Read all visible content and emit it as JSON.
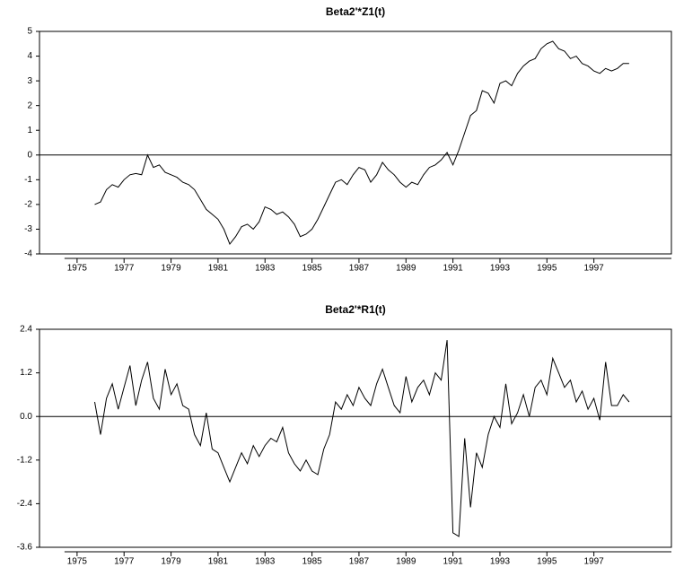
{
  "chart_data": [
    {
      "type": "line",
      "title": "Beta2'*Z1(t)",
      "color": "#000000",
      "x": [
        1975.75,
        1976,
        1976.25,
        1976.5,
        1976.75,
        1977,
        1977.25,
        1977.5,
        1977.75,
        1978,
        1978.25,
        1978.5,
        1978.75,
        1979,
        1979.25,
        1979.5,
        1979.75,
        1980,
        1980.25,
        1980.5,
        1980.75,
        1981,
        1981.25,
        1981.5,
        1981.75,
        1982,
        1982.25,
        1982.5,
        1982.75,
        1983,
        1983.25,
        1983.5,
        1983.75,
        1984,
        1984.25,
        1984.5,
        1984.75,
        1985,
        1985.25,
        1985.5,
        1985.75,
        1986,
        1986.25,
        1986.5,
        1986.75,
        1987,
        1987.25,
        1987.5,
        1987.75,
        1988,
        1988.25,
        1988.5,
        1988.75,
        1989,
        1989.25,
        1989.5,
        1989.75,
        1990,
        1990.25,
        1990.5,
        1990.75,
        1991,
        1991.25,
        1991.5,
        1991.75,
        1992,
        1992.25,
        1992.5,
        1992.75,
        1993,
        1993.25,
        1993.5,
        1993.75,
        1994,
        1994.25,
        1994.5,
        1994.75,
        1995,
        1995.25,
        1995.5,
        1995.75,
        1996,
        1996.25,
        1996.5,
        1996.75,
        1997,
        1997.25,
        1997.5,
        1997.75,
        1998,
        1998.25,
        1998.5
      ],
      "values": [
        -2.0,
        -1.9,
        -1.4,
        -1.2,
        -1.3,
        -1.0,
        -0.8,
        -0.75,
        -0.8,
        0.0,
        -0.5,
        -0.4,
        -0.7,
        -0.8,
        -0.9,
        -1.1,
        -1.2,
        -1.4,
        -1.8,
        -2.2,
        -2.4,
        -2.6,
        -3.0,
        -3.6,
        -3.3,
        -2.9,
        -2.8,
        -3.0,
        -2.7,
        -2.1,
        -2.2,
        -2.4,
        -2.3,
        -2.5,
        -2.8,
        -3.3,
        -3.2,
        -3.0,
        -2.6,
        -2.1,
        -1.6,
        -1.1,
        -1.0,
        -1.2,
        -0.8,
        -0.5,
        -0.6,
        -1.1,
        -0.8,
        -0.3,
        -0.6,
        -0.8,
        -1.1,
        -1.3,
        -1.1,
        -1.2,
        -0.8,
        -0.5,
        -0.4,
        -0.2,
        0.1,
        -0.4,
        0.2,
        0.9,
        1.6,
        1.8,
        2.6,
        2.5,
        2.1,
        2.9,
        3.0,
        2.8,
        3.3,
        3.6,
        3.8,
        3.9,
        4.3,
        4.5,
        4.6,
        4.3,
        4.2,
        3.9,
        4.0,
        3.7,
        3.6,
        3.4,
        3.3,
        3.5,
        3.4,
        3.5,
        3.7,
        3.7
      ],
      "xlim": [
        1973.4,
        2000.3
      ],
      "xticks": [
        1975,
        1977,
        1979,
        1981,
        1983,
        1985,
        1987,
        1989,
        1991,
        1993,
        1995,
        1997
      ],
      "ylim": [
        -4,
        5
      ],
      "yticks": [
        5,
        4,
        3,
        2,
        1,
        0,
        -1,
        -2,
        -3,
        -4
      ]
    },
    {
      "type": "line",
      "title": "Beta2'*R1(t)",
      "color": "#000000",
      "x": [
        1975.75,
        1976,
        1976.25,
        1976.5,
        1976.75,
        1977,
        1977.25,
        1977.5,
        1977.75,
        1978,
        1978.25,
        1978.5,
        1978.75,
        1979,
        1979.25,
        1979.5,
        1979.75,
        1980,
        1980.25,
        1980.5,
        1980.75,
        1981,
        1981.25,
        1981.5,
        1981.75,
        1982,
        1982.25,
        1982.5,
        1982.75,
        1983,
        1983.25,
        1983.5,
        1983.75,
        1984,
        1984.25,
        1984.5,
        1984.75,
        1985,
        1985.25,
        1985.5,
        1985.75,
        1986,
        1986.25,
        1986.5,
        1986.75,
        1987,
        1987.25,
        1987.5,
        1987.75,
        1988,
        1988.25,
        1988.5,
        1988.75,
        1989,
        1989.25,
        1989.5,
        1989.75,
        1990,
        1990.25,
        1990.5,
        1990.75,
        1991,
        1991.25,
        1991.5,
        1991.75,
        1992,
        1992.25,
        1992.5,
        1992.75,
        1993,
        1993.25,
        1993.5,
        1993.75,
        1994,
        1994.25,
        1994.5,
        1994.75,
        1995,
        1995.25,
        1995.5,
        1995.75,
        1996,
        1996.25,
        1996.5,
        1996.75,
        1997,
        1997.25,
        1997.5,
        1997.75,
        1998,
        1998.25,
        1998.5
      ],
      "values": [
        0.4,
        -0.5,
        0.5,
        0.9,
        0.2,
        0.8,
        1.4,
        0.3,
        1.0,
        1.5,
        0.5,
        0.2,
        1.3,
        0.6,
        0.9,
        0.3,
        0.2,
        -0.5,
        -0.8,
        0.1,
        -0.9,
        -1.0,
        -1.4,
        -1.8,
        -1.4,
        -1.0,
        -1.3,
        -0.8,
        -1.1,
        -0.8,
        -0.6,
        -0.7,
        -0.3,
        -1.0,
        -1.3,
        -1.5,
        -1.2,
        -1.5,
        -1.6,
        -0.9,
        -0.5,
        0.4,
        0.2,
        0.6,
        0.3,
        0.8,
        0.5,
        0.3,
        0.9,
        1.3,
        0.8,
        0.3,
        0.1,
        1.1,
        0.4,
        0.8,
        1.0,
        0.6,
        1.2,
        1.0,
        2.1,
        -3.2,
        -3.3,
        -0.6,
        -2.5,
        -1.0,
        -1.4,
        -0.5,
        0.0,
        -0.3,
        0.9,
        -0.2,
        0.1,
        0.6,
        0.0,
        0.8,
        1.0,
        0.6,
        1.6,
        1.2,
        0.8,
        1.0,
        0.4,
        0.7,
        0.2,
        0.5,
        -0.1,
        1.5,
        0.3,
        0.3,
        0.6,
        0.4
      ],
      "xlim": [
        1973.4,
        2000.3
      ],
      "xticks": [
        1975,
        1977,
        1979,
        1981,
        1983,
        1985,
        1987,
        1989,
        1991,
        1993,
        1995,
        1997
      ],
      "ylim": [
        -3.6,
        2.4
      ],
      "yticks": [
        2.4,
        1.2,
        {
          "value": 0,
          "label": "0.0"
        },
        -1.2,
        -2.4,
        -3.6
      ]
    }
  ]
}
